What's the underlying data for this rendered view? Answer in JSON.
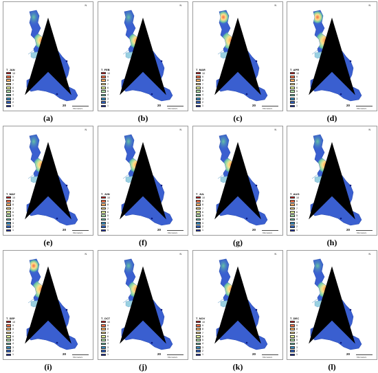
{
  "panels": [
    {
      "caption": "(a)",
      "legend_title": "T_JAN",
      "hotspot": "low"
    },
    {
      "caption": "(b)",
      "legend_title": "T_FEB",
      "hotspot": "low"
    },
    {
      "caption": "(c)",
      "legend_title": "T_MAR",
      "hotspot": "high"
    },
    {
      "caption": "(d)",
      "legend_title": "T_APR",
      "hotspot": "high"
    },
    {
      "caption": "(e)",
      "legend_title": "T_MAY",
      "hotspot": "low"
    },
    {
      "caption": "(f)",
      "legend_title": "T_JUN",
      "hotspot": "low"
    },
    {
      "caption": "(g)",
      "legend_title": "T_JUL",
      "hotspot": "low"
    },
    {
      "caption": "(h)",
      "legend_title": "T_AUG",
      "hotspot": "low"
    },
    {
      "caption": "(i)",
      "legend_title": "T_SEP",
      "hotspot": "high"
    },
    {
      "caption": "(j)",
      "legend_title": "T_OCT",
      "hotspot": "mid"
    },
    {
      "caption": "(k)",
      "legend_title": "T_NOV",
      "hotspot": "low"
    },
    {
      "caption": "(l)",
      "legend_title": "T_DEC",
      "hotspot": "mid"
    }
  ],
  "legend": {
    "labels": [
      "10",
      "9",
      "8",
      "7",
      "6",
      "5",
      "4",
      "3",
      "2",
      "1"
    ],
    "colors": [
      "#d7191c",
      "#f46d43",
      "#fdae61",
      "#fee08b",
      "#e6f598",
      "#abdda4",
      "#66c2a5",
      "#3288bd",
      "#2c5fbf",
      "#1d2fb0"
    ]
  },
  "scale": {
    "number": "20",
    "text": "Kilometers"
  },
  "north_label": "N",
  "colors": {
    "land": "#3a5fd0",
    "land_stroke": "#2a4cb4"
  }
}
